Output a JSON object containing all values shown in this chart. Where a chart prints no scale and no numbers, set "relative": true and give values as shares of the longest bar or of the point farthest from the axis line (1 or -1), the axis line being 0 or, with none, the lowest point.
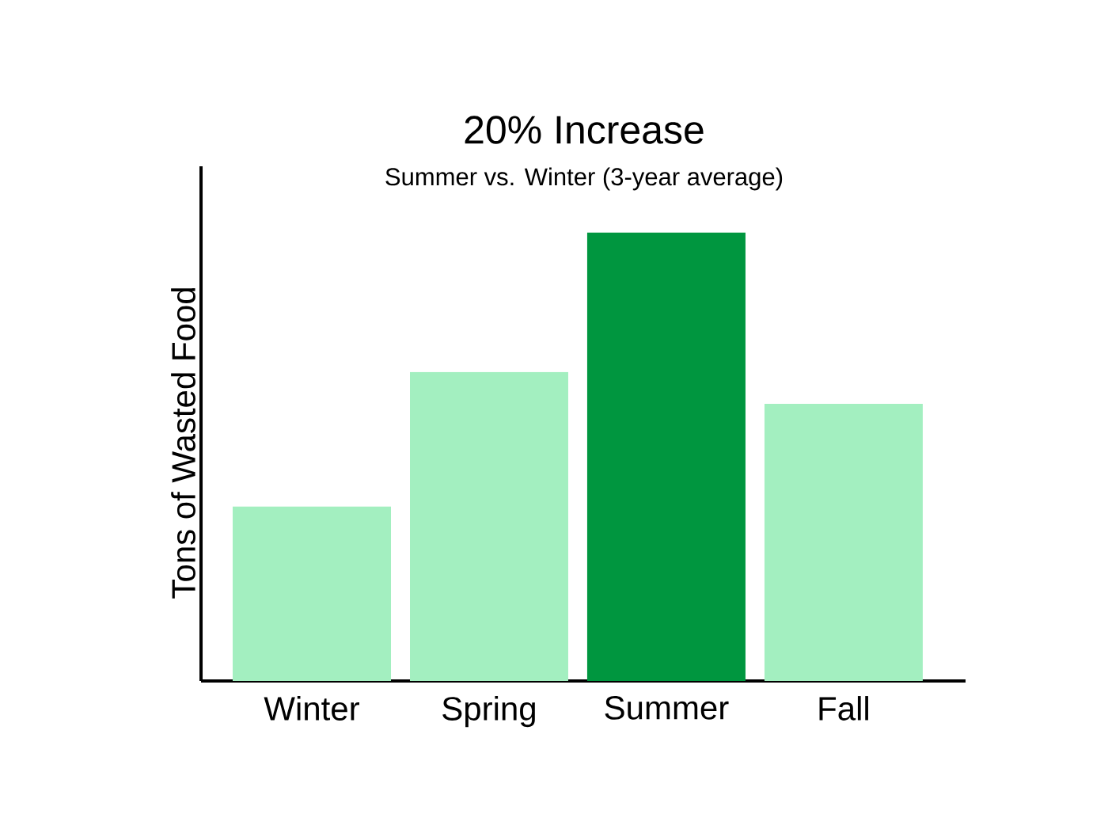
{
  "chart_data": {
    "type": "bar",
    "title": "20% Increase",
    "subtitle": "Summer vs. Winter (3-year average)",
    "ylabel": "Tons of Wasted Food",
    "categories": [
      "Winter",
      "Spring",
      "Summer",
      "Fall"
    ],
    "values": [
      0.389,
      0.689,
      1,
      0.618
    ],
    "colors": [
      "#a3efc0",
      "#a3efc0",
      "#00963f",
      "#a3efc0"
    ],
    "relative": true
  }
}
